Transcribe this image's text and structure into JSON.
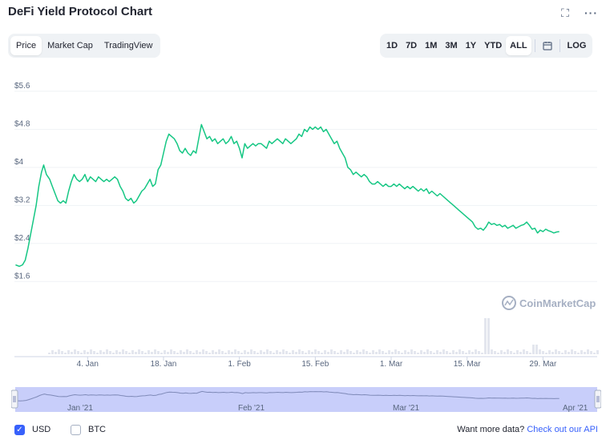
{
  "header": {
    "title": "DeFi Yield Protocol Chart"
  },
  "tabs_left": [
    "Price",
    "Market Cap",
    "TradingView"
  ],
  "tabs_left_active": "Price",
  "tabs_right": [
    "1D",
    "7D",
    "1M",
    "3M",
    "1Y",
    "YTD",
    "ALL"
  ],
  "tabs_right_active": "ALL",
  "log_label": "LOG",
  "watermark": "CoinMarketCap",
  "footer": {
    "usd_label": "USD",
    "btc_label": "BTC",
    "more_data_text": "Want more data?",
    "api_link": "Check out our API"
  },
  "navigator": {
    "labels": [
      "Jan '21",
      "Feb '21",
      "Mar '21",
      "Apr '21"
    ]
  },
  "colors": {
    "line": "#16c784",
    "accent": "#3861fb",
    "nav_fill": "#c8cefa"
  },
  "chart_data": {
    "type": "line",
    "title": "",
    "series": [
      {
        "name": "Price",
        "color": "#16c784"
      }
    ],
    "yticks": [
      "$1.6",
      "$2.4",
      "$3.2",
      "$4",
      "$4.8",
      "$5.6"
    ],
    "ytick_values": [
      1.6,
      2.4,
      3.2,
      4.0,
      4.8,
      5.6
    ],
    "ylim": [
      1.2,
      5.75
    ],
    "xticks": [
      "4. Jan",
      "18. Jan",
      "1. Feb",
      "15. Feb",
      "1. Mar",
      "15. Mar",
      "29. Mar"
    ],
    "xtick_days": [
      4,
      18,
      32,
      46,
      60,
      74,
      88
    ],
    "xlim": [
      -9.5,
      98
    ],
    "x_unit": "days since 1 Jan 2021",
    "points": [
      [
        -9.3,
        1.95
      ],
      [
        -8.6,
        1.92
      ],
      [
        -8.0,
        1.95
      ],
      [
        -7.5,
        2.05
      ],
      [
        -7.0,
        2.3
      ],
      [
        -6.5,
        2.6
      ],
      [
        -6.0,
        2.9
      ],
      [
        -5.5,
        3.2
      ],
      [
        -5.0,
        3.6
      ],
      [
        -4.5,
        3.9
      ],
      [
        -4.1,
        4.05
      ],
      [
        -3.6,
        3.85
      ],
      [
        -3.0,
        3.75
      ],
      [
        -2.5,
        3.6
      ],
      [
        -2.0,
        3.45
      ],
      [
        -1.5,
        3.3
      ],
      [
        -1.0,
        3.25
      ],
      [
        -0.5,
        3.3
      ],
      [
        0.0,
        3.25
      ],
      [
        0.5,
        3.5
      ],
      [
        1.0,
        3.7
      ],
      [
        1.5,
        3.85
      ],
      [
        2.0,
        3.75
      ],
      [
        2.5,
        3.7
      ],
      [
        3.0,
        3.75
      ],
      [
        3.5,
        3.85
      ],
      [
        4.0,
        3.7
      ],
      [
        4.5,
        3.8
      ],
      [
        5.0,
        3.75
      ],
      [
        5.5,
        3.7
      ],
      [
        6.0,
        3.8
      ],
      [
        6.5,
        3.75
      ],
      [
        7.0,
        3.7
      ],
      [
        7.5,
        3.75
      ],
      [
        8.0,
        3.7
      ],
      [
        8.5,
        3.75
      ],
      [
        9.0,
        3.8
      ],
      [
        9.5,
        3.75
      ],
      [
        10.0,
        3.6
      ],
      [
        10.5,
        3.5
      ],
      [
        11.0,
        3.35
      ],
      [
        11.5,
        3.3
      ],
      [
        12.0,
        3.35
      ],
      [
        12.5,
        3.25
      ],
      [
        13.0,
        3.3
      ],
      [
        13.5,
        3.4
      ],
      [
        14.0,
        3.5
      ],
      [
        14.5,
        3.55
      ],
      [
        15.0,
        3.65
      ],
      [
        15.5,
        3.75
      ],
      [
        16.0,
        3.6
      ],
      [
        16.5,
        3.65
      ],
      [
        17.0,
        3.95
      ],
      [
        17.5,
        4.05
      ],
      [
        18.0,
        4.3
      ],
      [
        18.5,
        4.55
      ],
      [
        19.0,
        4.7
      ],
      [
        19.5,
        4.65
      ],
      [
        20.0,
        4.6
      ],
      [
        20.5,
        4.5
      ],
      [
        21.0,
        4.35
      ],
      [
        21.5,
        4.3
      ],
      [
        22.0,
        4.4
      ],
      [
        22.5,
        4.3
      ],
      [
        23.0,
        4.25
      ],
      [
        23.5,
        4.35
      ],
      [
        24.0,
        4.3
      ],
      [
        24.5,
        4.6
      ],
      [
        25.0,
        4.9
      ],
      [
        25.5,
        4.75
      ],
      [
        26.0,
        4.6
      ],
      [
        26.5,
        4.65
      ],
      [
        27.0,
        4.55
      ],
      [
        27.5,
        4.6
      ],
      [
        28.0,
        4.5
      ],
      [
        28.5,
        4.55
      ],
      [
        29.0,
        4.6
      ],
      [
        29.5,
        4.5
      ],
      [
        30.0,
        4.55
      ],
      [
        30.5,
        4.65
      ],
      [
        31.0,
        4.5
      ],
      [
        31.5,
        4.55
      ],
      [
        32.0,
        4.4
      ],
      [
        32.5,
        4.2
      ],
      [
        33.0,
        4.5
      ],
      [
        33.5,
        4.4
      ],
      [
        34.0,
        4.45
      ],
      [
        34.5,
        4.5
      ],
      [
        35.0,
        4.45
      ],
      [
        35.5,
        4.5
      ],
      [
        36.0,
        4.5
      ],
      [
        36.5,
        4.45
      ],
      [
        37.0,
        4.4
      ],
      [
        37.5,
        4.55
      ],
      [
        38.0,
        4.5
      ],
      [
        38.5,
        4.55
      ],
      [
        39.0,
        4.6
      ],
      [
        39.5,
        4.55
      ],
      [
        40.0,
        4.5
      ],
      [
        40.5,
        4.6
      ],
      [
        41.0,
        4.55
      ],
      [
        41.5,
        4.5
      ],
      [
        42.0,
        4.55
      ],
      [
        42.5,
        4.6
      ],
      [
        43.0,
        4.7
      ],
      [
        43.5,
        4.65
      ],
      [
        44.0,
        4.8
      ],
      [
        44.5,
        4.75
      ],
      [
        45.0,
        4.85
      ],
      [
        45.5,
        4.8
      ],
      [
        46.0,
        4.85
      ],
      [
        46.5,
        4.8
      ],
      [
        47.0,
        4.85
      ],
      [
        47.5,
        4.75
      ],
      [
        48.0,
        4.8
      ],
      [
        48.5,
        4.7
      ],
      [
        49.0,
        4.6
      ],
      [
        49.5,
        4.5
      ],
      [
        50.0,
        4.55
      ],
      [
        50.5,
        4.4
      ],
      [
        51.0,
        4.3
      ],
      [
        51.5,
        4.2
      ],
      [
        52.0,
        4.0
      ],
      [
        52.5,
        3.95
      ],
      [
        53.0,
        3.85
      ],
      [
        53.5,
        3.9
      ],
      [
        54.0,
        3.85
      ],
      [
        54.5,
        3.8
      ],
      [
        55.0,
        3.85
      ],
      [
        55.5,
        3.8
      ],
      [
        56.0,
        3.7
      ],
      [
        56.5,
        3.65
      ],
      [
        57.0,
        3.65
      ],
      [
        57.5,
        3.7
      ],
      [
        58.0,
        3.65
      ],
      [
        58.5,
        3.6
      ],
      [
        59.0,
        3.65
      ],
      [
        59.5,
        3.6
      ],
      [
        60.0,
        3.6
      ],
      [
        60.5,
        3.65
      ],
      [
        61.0,
        3.6
      ],
      [
        61.5,
        3.65
      ],
      [
        62.0,
        3.6
      ],
      [
        62.5,
        3.55
      ],
      [
        63.0,
        3.6
      ],
      [
        63.5,
        3.55
      ],
      [
        64.0,
        3.6
      ],
      [
        64.5,
        3.55
      ],
      [
        65.0,
        3.5
      ],
      [
        65.5,
        3.55
      ],
      [
        66.0,
        3.5
      ],
      [
        66.5,
        3.55
      ],
      [
        67.0,
        3.45
      ],
      [
        67.5,
        3.5
      ],
      [
        68.0,
        3.45
      ],
      [
        68.5,
        3.4
      ],
      [
        69.0,
        3.45
      ],
      [
        69.5,
        3.4
      ],
      [
        70.0,
        3.35
      ],
      [
        70.5,
        3.3
      ],
      [
        71.0,
        3.25
      ],
      [
        71.5,
        3.2
      ],
      [
        72.0,
        3.15
      ],
      [
        72.5,
        3.1
      ],
      [
        73.0,
        3.05
      ],
      [
        73.5,
        3.0
      ],
      [
        74.0,
        2.95
      ],
      [
        74.5,
        2.9
      ],
      [
        75.0,
        2.85
      ],
      [
        75.5,
        2.75
      ],
      [
        76.0,
        2.7
      ],
      [
        76.5,
        2.72
      ],
      [
        77.0,
        2.68
      ],
      [
        77.5,
        2.75
      ],
      [
        78.0,
        2.85
      ],
      [
        78.5,
        2.8
      ],
      [
        79.0,
        2.82
      ],
      [
        79.5,
        2.78
      ],
      [
        80.0,
        2.8
      ],
      [
        80.5,
        2.75
      ],
      [
        81.0,
        2.78
      ],
      [
        81.5,
        2.72
      ],
      [
        82.0,
        2.75
      ],
      [
        82.5,
        2.78
      ],
      [
        83.0,
        2.72
      ],
      [
        83.5,
        2.75
      ],
      [
        84.0,
        2.78
      ],
      [
        84.5,
        2.8
      ],
      [
        85.0,
        2.85
      ],
      [
        85.5,
        2.78
      ],
      [
        86.0,
        2.7
      ],
      [
        86.5,
        2.72
      ],
      [
        87.0,
        2.62
      ],
      [
        87.5,
        2.68
      ],
      [
        88.0,
        2.65
      ],
      [
        88.5,
        2.7
      ],
      [
        89.0,
        2.67
      ],
      [
        89.5,
        2.65
      ],
      [
        90.0,
        2.62
      ],
      [
        90.5,
        2.64
      ],
      [
        91.0,
        2.65
      ]
    ]
  }
}
